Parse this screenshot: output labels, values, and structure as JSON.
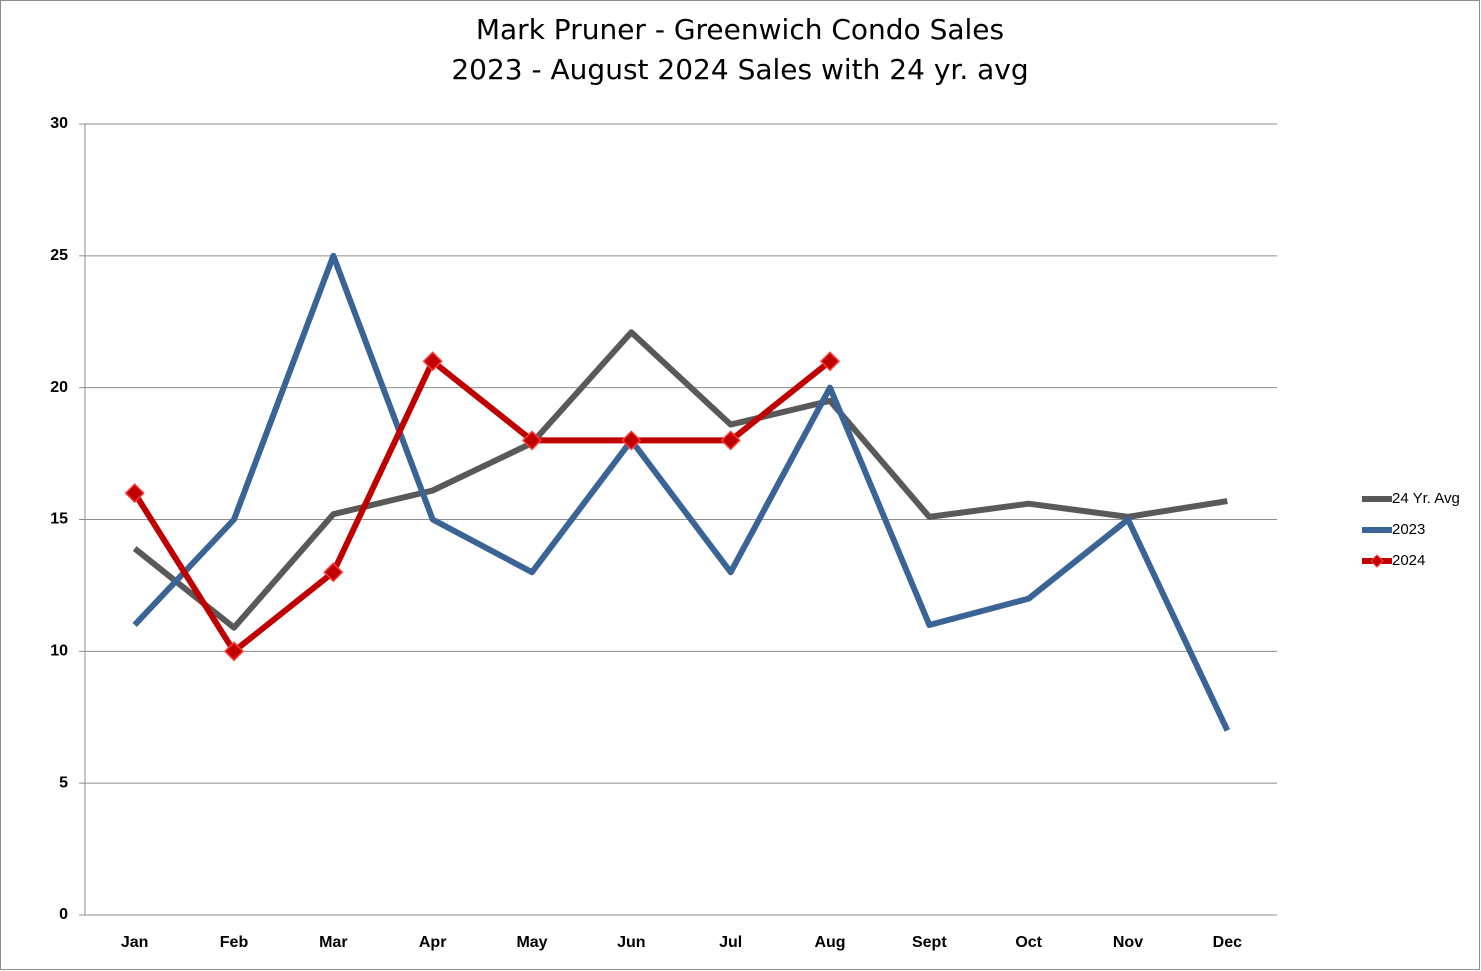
{
  "chart_data": {
    "type": "line",
    "title": "Mark Pruner - Greenwich Condo Sales",
    "subtitle": "2023 - August 2024 Sales with 24 yr. avg",
    "categories": [
      "Jan",
      "Feb",
      "Mar",
      "Apr",
      "May",
      "Jun",
      "Jul",
      "Aug",
      "Sept",
      "Oct",
      "Nov",
      "Dec"
    ],
    "series": [
      {
        "name": "24 Yr. Avg",
        "color": "#595959",
        "values": [
          13.9,
          10.9,
          15.2,
          16.1,
          17.9,
          22.1,
          18.6,
          19.5,
          15.1,
          15.6,
          15.1,
          15.7
        ]
      },
      {
        "name": "2023",
        "color": "#3b6496",
        "values": [
          11,
          15,
          25,
          15,
          13,
          18,
          13,
          20,
          11,
          12,
          15,
          7
        ]
      },
      {
        "name": "2024",
        "color": "#c00000",
        "marker": "diamond",
        "values": [
          16,
          10,
          13,
          21,
          18,
          18,
          18,
          21,
          null,
          null,
          null,
          null
        ]
      }
    ],
    "ylim": [
      0,
      30
    ],
    "yticks": [
      0,
      5,
      10,
      15,
      20,
      25,
      30
    ],
    "grid": true,
    "legend": "right"
  }
}
